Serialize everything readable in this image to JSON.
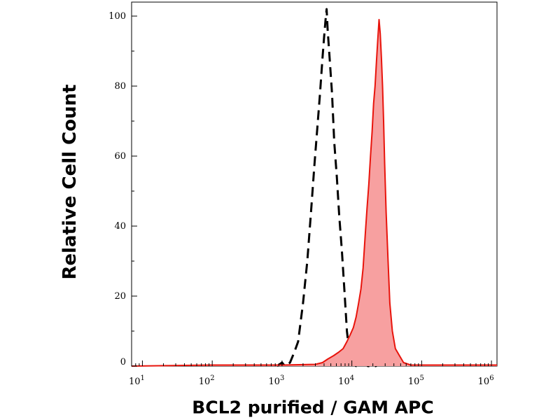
{
  "chart_data": {
    "type": "area",
    "xlabel": "BCL2 purified / GAM APC",
    "ylabel": "Relative Cell Count",
    "xscale": "log",
    "xlim": [
      7,
      1200000
    ],
    "ylim": [
      0,
      104
    ],
    "x_ticks": [
      {
        "base": "10",
        "exp": "1",
        "value": 10
      },
      {
        "base": "10",
        "exp": "2",
        "value": 100
      },
      {
        "base": "10",
        "exp": "3",
        "value": 1000
      },
      {
        "base": "10",
        "exp": "4",
        "value": 10000
      },
      {
        "base": "10",
        "exp": "5",
        "value": 100000
      },
      {
        "base": "10",
        "exp": "6",
        "value": 1000000
      }
    ],
    "y_ticks": [
      "0",
      "20",
      "40",
      "60",
      "80",
      "100"
    ],
    "grid": false,
    "legend": "none",
    "series": [
      {
        "style": "dashed",
        "color": "#000000",
        "filled": false,
        "points": [
          [
            850,
            0
          ],
          [
            1000,
            1
          ],
          [
            1100,
            0
          ],
          [
            1300,
            1
          ],
          [
            1500,
            4
          ],
          [
            1700,
            7
          ],
          [
            2000,
            18
          ],
          [
            2300,
            30
          ],
          [
            2600,
            44
          ],
          [
            2900,
            57
          ],
          [
            3200,
            68
          ],
          [
            3500,
            78
          ],
          [
            3800,
            88
          ],
          [
            4000,
            94
          ],
          [
            4200,
            99
          ],
          [
            4350,
            102
          ],
          [
            4500,
            96
          ],
          [
            4800,
            88
          ],
          [
            5200,
            78
          ],
          [
            5600,
            64
          ],
          [
            6100,
            54
          ],
          [
            6600,
            43
          ],
          [
            7200,
            33
          ],
          [
            7800,
            22
          ],
          [
            8500,
            10
          ],
          [
            9200,
            4
          ],
          [
            10000,
            1
          ],
          [
            11500,
            0
          ],
          [
            13000,
            0
          ],
          [
            15000,
            1
          ],
          [
            17000,
            0
          ],
          [
            22000,
            0
          ],
          [
            27000,
            1
          ],
          [
            33000,
            0
          ]
        ]
      },
      {
        "style": "solid",
        "color": "#e8140c",
        "fill": "#f7a0a0",
        "filled": true,
        "points": [
          [
            7,
            0
          ],
          [
            100,
            0.3
          ],
          [
            1000,
            0.3
          ],
          [
            3000,
            0.5
          ],
          [
            3800,
            1
          ],
          [
            4500,
            2
          ],
          [
            5500,
            3
          ],
          [
            6500,
            4
          ],
          [
            7500,
            5
          ],
          [
            8500,
            7
          ],
          [
            9500,
            9
          ],
          [
            10500,
            11
          ],
          [
            11500,
            14
          ],
          [
            12500,
            18
          ],
          [
            13500,
            22
          ],
          [
            14500,
            28
          ],
          [
            15500,
            37
          ],
          [
            16500,
            45
          ],
          [
            17500,
            52
          ],
          [
            18500,
            60
          ],
          [
            19500,
            67
          ],
          [
            20500,
            75
          ],
          [
            21500,
            80
          ],
          [
            22500,
            87
          ],
          [
            23500,
            93
          ],
          [
            24500,
            99
          ],
          [
            25500,
            95
          ],
          [
            26500,
            88
          ],
          [
            27500,
            80
          ],
          [
            28500,
            70
          ],
          [
            29500,
            58
          ],
          [
            31000,
            44
          ],
          [
            33000,
            30
          ],
          [
            35000,
            18
          ],
          [
            38000,
            10
          ],
          [
            42000,
            5
          ],
          [
            48000,
            3
          ],
          [
            55000,
            1
          ],
          [
            70000,
            0.3
          ],
          [
            200000,
            0.3
          ],
          [
            1200000,
            0.3
          ]
        ]
      }
    ]
  }
}
